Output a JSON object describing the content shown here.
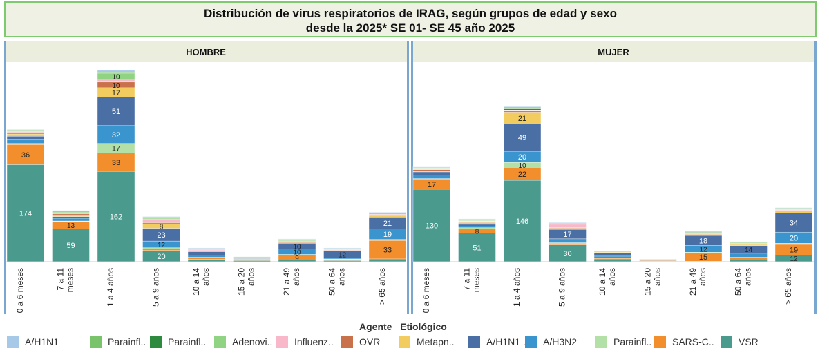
{
  "title": {
    "line1": "Distribución de virus respiratorios de IRAG, según grupos de edad  y sexo",
    "line2": "desde la 2025* SE 01- SE 45 año 2025"
  },
  "legend": {
    "title": "Agente   Etiológico",
    "items": [
      {
        "label": "A/H1N1",
        "color": "#a7c9e8"
      },
      {
        "label": "Parainfl..",
        "color": "#79c36a"
      },
      {
        "label": "Parainfl..",
        "color": "#2d8a3e"
      },
      {
        "label": "Adenovi..",
        "color": "#8fd383"
      },
      {
        "label": "Influenz..",
        "color": "#f8b8c9"
      },
      {
        "label": "OVR",
        "color": "#c8714a"
      },
      {
        "label": "Metapn..",
        "color": "#f2cc5e"
      },
      {
        "label": "A/H1N1 ..",
        "color": "#4a6fa5"
      },
      {
        "label": "A/H3N2",
        "color": "#3a95cf"
      },
      {
        "label": "Parainfl..",
        "color": "#b3e0a6"
      },
      {
        "label": "SARS-C..",
        "color": "#f28e2b"
      },
      {
        "label": "VSR",
        "color": "#4a9a8e"
      }
    ]
  },
  "chart_data": {
    "type": "bar",
    "stacked": true,
    "categories": [
      "0 a 6 meses",
      "7 a 11 meses",
      "1 a 4 años",
      "5 a 9 años",
      "10 a 14 años",
      "15 a 20 años",
      "21 a 49 años",
      "50 a 64 años",
      "> 65 años"
    ],
    "category_lines": [
      [
        "0 a 6 meses"
      ],
      [
        "7 a 11",
        "meses"
      ],
      [
        "1 a 4 años"
      ],
      [
        "5 a 9 años"
      ],
      [
        "10 a 14",
        "años"
      ],
      [
        "15 a 20",
        "años"
      ],
      [
        "21 a 49",
        "años"
      ],
      [
        "50 a 64",
        "años"
      ],
      [
        "> 65 años"
      ]
    ],
    "series_order": [
      "VSR",
      "SARS-C..",
      "Parainfl..(3)",
      "A/H3N2",
      "A/H1N1 ..",
      "Metapn..",
      "OVR",
      "Influenz..",
      "Adenovi..",
      "Parainfl..(2)",
      "Parainfl..(1)",
      "A/H1N1"
    ],
    "series_colors": [
      "#4a9a8e",
      "#f28e2b",
      "#b3e0a6",
      "#3a95cf",
      "#4a6fa5",
      "#f2cc5e",
      "#c8714a",
      "#f8b8c9",
      "#8fd383",
      "#2d8a3e",
      "#79c36a",
      "#a7c9e8"
    ],
    "panels": [
      {
        "name": "HOMBRE",
        "stacks": [
          [
            174,
            36,
            2,
            7,
            6,
            4,
            3,
            1,
            1,
            1,
            1,
            1
          ],
          [
            59,
            13,
            1,
            5,
            3,
            3,
            2,
            1,
            2,
            1,
            1,
            1
          ],
          [
            162,
            33,
            17,
            32,
            51,
            17,
            10,
            5,
            10,
            1,
            2,
            3
          ],
          [
            20,
            3,
            2,
            12,
            23,
            8,
            2,
            6,
            2,
            1,
            1,
            1
          ],
          [
            4,
            3,
            1,
            4,
            6,
            1,
            1,
            2,
            1,
            0,
            1,
            1
          ],
          [
            2,
            1,
            1,
            1,
            1,
            1,
            0,
            0,
            1,
            0,
            1,
            0
          ],
          [
            3,
            9,
            1,
            10,
            10,
            1,
            1,
            2,
            1,
            1,
            1,
            1
          ],
          [
            2,
            2,
            1,
            2,
            12,
            1,
            1,
            1,
            1,
            0,
            1,
            1
          ],
          [
            5,
            33,
            2,
            19,
            21,
            3,
            1,
            1,
            1,
            1,
            1,
            1
          ]
        ]
      },
      {
        "name": "MUJER",
        "stacks": [
          [
            130,
            17,
            2,
            6,
            6,
            2,
            2,
            1,
            1,
            1,
            1,
            1
          ],
          [
            51,
            8,
            2,
            3,
            3,
            3,
            2,
            1,
            1,
            1,
            1,
            1
          ],
          [
            146,
            22,
            10,
            20,
            49,
            21,
            2,
            1,
            1,
            2,
            1,
            3
          ],
          [
            30,
            3,
            1,
            7,
            17,
            2,
            1,
            6,
            1,
            0,
            1,
            1
          ],
          [
            3,
            3,
            1,
            3,
            6,
            1,
            0,
            0,
            1,
            0,
            1,
            0
          ],
          [
            1,
            1,
            0,
            1,
            1,
            1,
            0,
            0,
            0,
            0,
            0,
            0
          ],
          [
            1,
            15,
            1,
            12,
            18,
            2,
            1,
            1,
            1,
            1,
            1,
            1
          ],
          [
            3,
            4,
            1,
            7,
            14,
            2,
            1,
            1,
            1,
            0,
            1,
            1
          ],
          [
            12,
            19,
            2,
            20,
            34,
            4,
            1,
            1,
            1,
            1,
            1,
            1
          ]
        ]
      }
    ],
    "ylim": [
      0,
      380
    ],
    "grid": false,
    "legend_position": "bottom"
  }
}
